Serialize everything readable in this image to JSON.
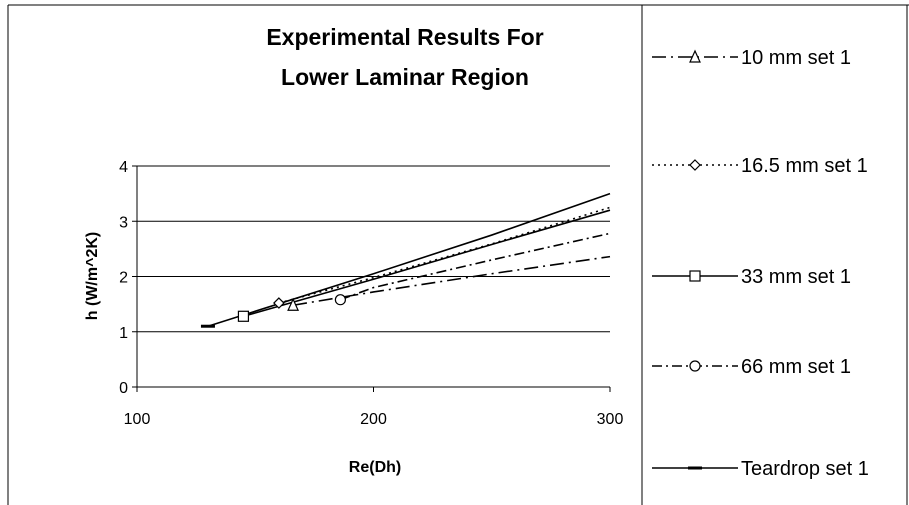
{
  "chart_data": {
    "type": "line",
    "title_lines": [
      "Experimental Results For",
      "Lower Laminar Region"
    ],
    "xlabel": "Re(Dh)",
    "ylabel": "h (W/m^2K)",
    "xlim": [
      100,
      300
    ],
    "ylim": [
      0,
      4
    ],
    "xticks": [
      100,
      200,
      300
    ],
    "yticks": [
      0,
      1,
      2,
      3,
      4
    ],
    "grid": "horizontal",
    "legend_position": "right",
    "series": [
      {
        "name": "10 mm set 1",
        "marker": "triangle",
        "dash": "longdashdot",
        "x": [
          166,
          200,
          250,
          300
        ],
        "y": [
          1.48,
          1.72,
          2.05,
          2.36
        ]
      },
      {
        "name": "16.5 mm set 1",
        "marker": "diamond",
        "dash": "dotted",
        "x": [
          160,
          200,
          250,
          300
        ],
        "y": [
          1.52,
          1.98,
          2.59,
          3.25
        ]
      },
      {
        "name": "33 mm set 1",
        "marker": "square",
        "dash": "solid",
        "x": [
          145,
          200,
          250,
          300
        ],
        "y": [
          1.28,
          1.95,
          2.58,
          3.2
        ]
      },
      {
        "name": "66 mm set 1",
        "marker": "circle",
        "dash": "dashdot",
        "x": [
          186,
          200,
          250,
          300
        ],
        "y": [
          1.58,
          1.8,
          2.3,
          2.78
        ]
      },
      {
        "name": "Teardrop set 1",
        "marker": "dash",
        "dash": "solid",
        "x": [
          130,
          200,
          250,
          300
        ],
        "y": [
          1.1,
          2.05,
          2.75,
          3.5
        ]
      }
    ]
  }
}
